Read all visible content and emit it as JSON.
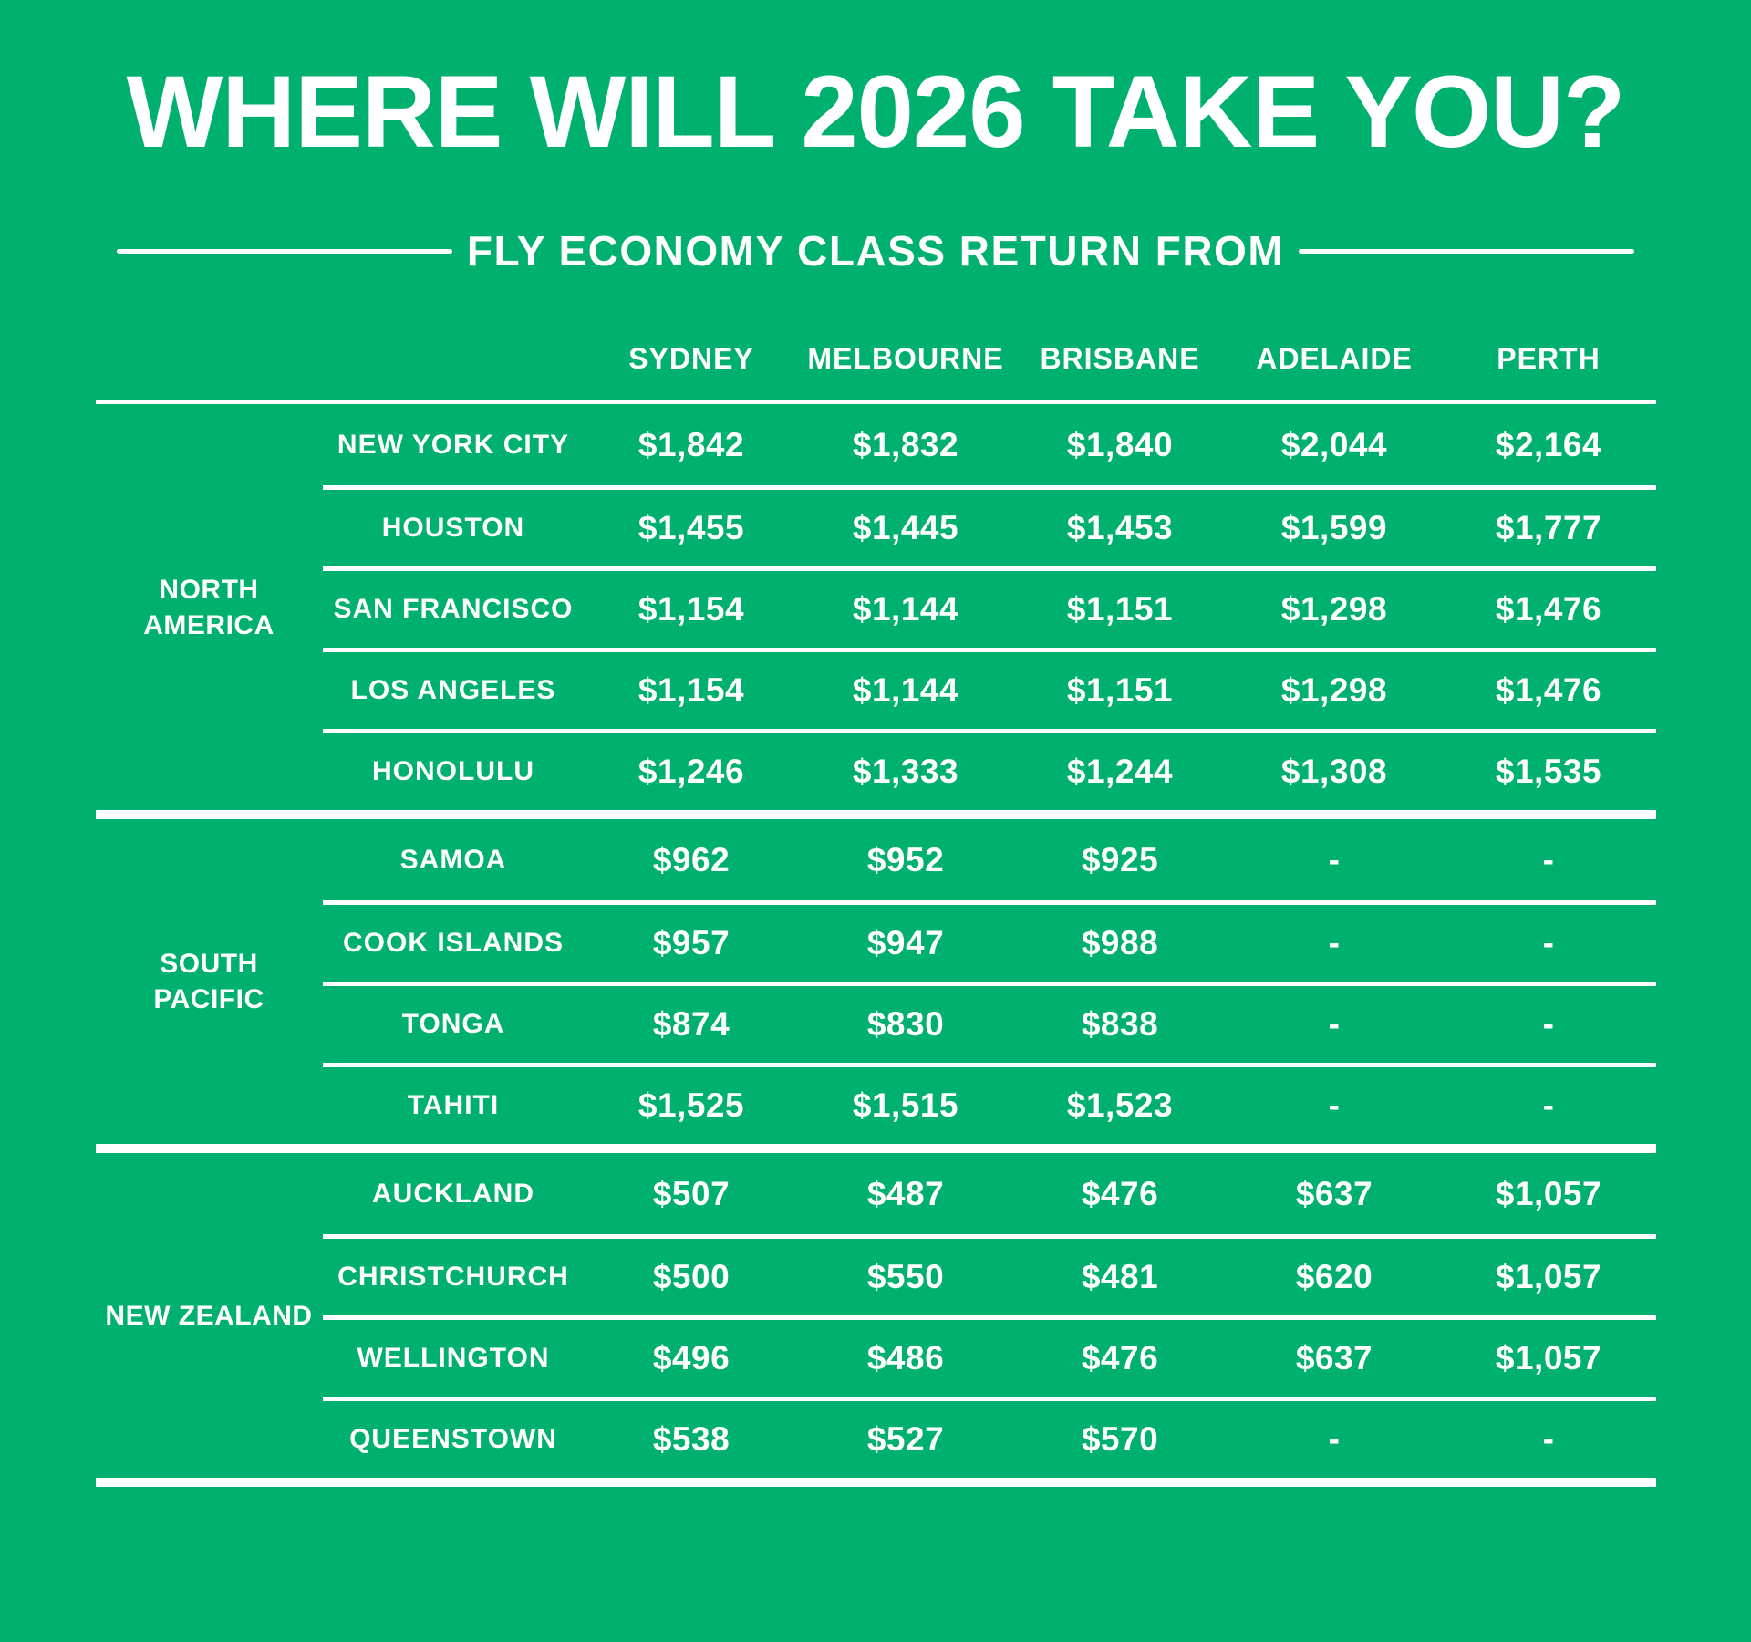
{
  "colors": {
    "background": "#00B06E",
    "text": "#FFFFFF"
  },
  "title": "WHERE WILL 2026 TAKE YOU?",
  "subtitle": "FLY ECONOMY CLASS RETURN FROM",
  "table": {
    "origin_headers": [
      "SYDNEY",
      "MELBOURNE",
      "BRISBANE",
      "ADELAIDE",
      "PERTH"
    ],
    "groups": [
      {
        "region": "NORTH\nAMERICA",
        "region_name": "NORTH AMERICA",
        "rows": [
          {
            "destination": "NEW YORK CITY",
            "fares": [
              "$1,842",
              "$1,832",
              "$1,840",
              "$2,044",
              "$2,164"
            ]
          },
          {
            "destination": "HOUSTON",
            "fares": [
              "$1,455",
              "$1,445",
              "$1,453",
              "$1,599",
              "$1,777"
            ]
          },
          {
            "destination": "SAN FRANCISCO",
            "fares": [
              "$1,154",
              "$1,144",
              "$1,151",
              "$1,298",
              "$1,476"
            ]
          },
          {
            "destination": "LOS ANGELES",
            "fares": [
              "$1,154",
              "$1,144",
              "$1,151",
              "$1,298",
              "$1,476"
            ]
          },
          {
            "destination": "HONOLULU",
            "fares": [
              "$1,246",
              "$1,333",
              "$1,244",
              "$1,308",
              "$1,535"
            ]
          }
        ]
      },
      {
        "region": "SOUTH\nPACIFIC",
        "region_name": "SOUTH PACIFIC",
        "rows": [
          {
            "destination": "SAMOA",
            "fares": [
              "$962",
              "$952",
              "$925",
              "-",
              "-"
            ]
          },
          {
            "destination": "COOK ISLANDS",
            "fares": [
              "$957",
              "$947",
              "$988",
              "-",
              "-"
            ]
          },
          {
            "destination": "TONGA",
            "fares": [
              "$874",
              "$830",
              "$838",
              "-",
              "-"
            ]
          },
          {
            "destination": "TAHITI",
            "fares": [
              "$1,525",
              "$1,515",
              "$1,523",
              "-",
              "-"
            ]
          }
        ]
      },
      {
        "region": "NEW ZEALAND",
        "region_name": "NEW ZEALAND",
        "rows": [
          {
            "destination": "AUCKLAND",
            "fares": [
              "$507",
              "$487",
              "$476",
              "$637",
              "$1,057"
            ]
          },
          {
            "destination": "CHRISTCHURCH",
            "fares": [
              "$500",
              "$550",
              "$481",
              "$620",
              "$1,057"
            ]
          },
          {
            "destination": "WELLINGTON",
            "fares": [
              "$496",
              "$486",
              "$476",
              "$637",
              "$1,057"
            ]
          },
          {
            "destination": "QUEENSTOWN",
            "fares": [
              "$538",
              "$527",
              "$570",
              "-",
              "-"
            ]
          }
        ]
      }
    ]
  },
  "chart_data": {
    "type": "table",
    "title": "WHERE WILL 2026 TAKE YOU?",
    "subtitle": "FLY ECONOMY CLASS RETURN FROM",
    "currency_symbol": "$",
    "columns": [
      "SYDNEY",
      "MELBOURNE",
      "BRISBANE",
      "ADELAIDE",
      "PERTH"
    ],
    "rows": [
      {
        "region": "NORTH AMERICA",
        "destination": "NEW YORK CITY",
        "values": [
          1842,
          1832,
          1840,
          2044,
          2164
        ]
      },
      {
        "region": "NORTH AMERICA",
        "destination": "HOUSTON",
        "values": [
          1455,
          1445,
          1453,
          1599,
          1777
        ]
      },
      {
        "region": "NORTH AMERICA",
        "destination": "SAN FRANCISCO",
        "values": [
          1154,
          1144,
          1151,
          1298,
          1476
        ]
      },
      {
        "region": "NORTH AMERICA",
        "destination": "LOS ANGELES",
        "values": [
          1154,
          1144,
          1151,
          1298,
          1476
        ]
      },
      {
        "region": "NORTH AMERICA",
        "destination": "HONOLULU",
        "values": [
          1246,
          1333,
          1244,
          1308,
          1535
        ]
      },
      {
        "region": "SOUTH PACIFIC",
        "destination": "SAMOA",
        "values": [
          962,
          952,
          925,
          null,
          null
        ]
      },
      {
        "region": "SOUTH PACIFIC",
        "destination": "COOK ISLANDS",
        "values": [
          957,
          947,
          988,
          null,
          null
        ]
      },
      {
        "region": "SOUTH PACIFIC",
        "destination": "TONGA",
        "values": [
          874,
          830,
          838,
          null,
          null
        ]
      },
      {
        "region": "SOUTH PACIFIC",
        "destination": "TAHITI",
        "values": [
          1525,
          1515,
          1523,
          null,
          null
        ]
      },
      {
        "region": "NEW ZEALAND",
        "destination": "AUCKLAND",
        "values": [
          507,
          487,
          476,
          637,
          1057
        ]
      },
      {
        "region": "NEW ZEALAND",
        "destination": "CHRISTCHURCH",
        "values": [
          500,
          550,
          481,
          620,
          1057
        ]
      },
      {
        "region": "NEW ZEALAND",
        "destination": "WELLINGTON",
        "values": [
          496,
          486,
          476,
          637,
          1057
        ]
      },
      {
        "region": "NEW ZEALAND",
        "destination": "QUEENSTOWN",
        "values": [
          538,
          527,
          570,
          null,
          null
        ]
      }
    ]
  }
}
